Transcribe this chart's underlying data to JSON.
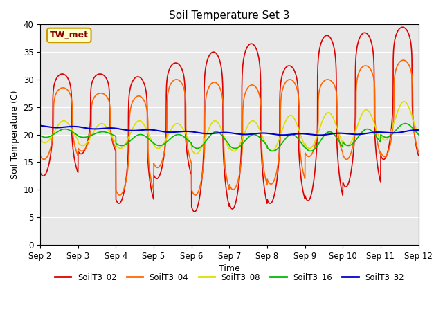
{
  "title": "Soil Temperature Set 3",
  "xlabel": "Time",
  "ylabel": "Soil Temperature (C)",
  "annotation_text": "TW_met",
  "annotation_color": "#880000",
  "annotation_bg": "#ffffcc",
  "annotation_border": "#cc9900",
  "ylim": [
    0,
    40
  ],
  "xlim_start": 0,
  "xlim_end": 10,
  "xtick_labels": [
    "Sep 2",
    "Sep 3",
    "Sep 4",
    "Sep 5",
    "Sep 6",
    "Sep 7",
    "Sep 8",
    "Sep 9",
    "Sep 10",
    "Sep 11",
    "Sep 12"
  ],
  "xtick_positions": [
    0,
    1,
    2,
    3,
    4,
    5,
    6,
    7,
    8,
    9,
    10
  ],
  "series_labels": [
    "SoilT3_02",
    "SoilT3_04",
    "SoilT3_08",
    "SoilT3_16",
    "SoilT3_32"
  ],
  "series_colors": [
    "#dd0000",
    "#ff6600",
    "#dddd00",
    "#00bb00",
    "#0000cc"
  ],
  "series_linewidths": [
    1.2,
    1.2,
    1.2,
    1.2,
    1.5
  ],
  "grid_color": "#ffffff",
  "bg_color": "#e8e8e8",
  "fig_color": "#ffffff",
  "yticks": [
    0,
    5,
    10,
    15,
    20,
    25,
    30,
    35,
    40
  ],
  "T02_peaks": [
    31.0,
    31.0,
    30.5,
    33.0,
    35.0,
    36.5,
    32.5,
    38.0,
    38.5,
    39.5
  ],
  "T02_troughs": [
    12.5,
    16.5,
    7.5,
    12.0,
    6.0,
    6.5,
    7.5,
    8.0,
    10.5,
    15.5
  ],
  "T04_peaks": [
    28.5,
    27.5,
    27.0,
    30.0,
    29.5,
    29.0,
    30.0,
    30.0,
    32.5,
    33.5
  ],
  "T04_troughs": [
    15.5,
    17.0,
    9.0,
    14.0,
    9.0,
    10.0,
    11.0,
    16.0,
    15.5,
    16.0
  ],
  "T08_peaks": [
    22.5,
    22.0,
    22.5,
    22.0,
    22.5,
    22.5,
    23.5,
    24.0,
    24.5,
    26.0
  ],
  "T08_troughs": [
    18.5,
    18.0,
    17.5,
    17.5,
    16.5,
    17.0,
    17.0,
    17.5,
    18.0,
    19.0
  ],
  "T16_peaks": [
    21.0,
    20.5,
    20.0,
    20.0,
    20.5,
    20.0,
    20.0,
    20.5,
    21.0,
    22.0
  ],
  "T16_troughs": [
    19.5,
    19.5,
    18.0,
    18.0,
    17.5,
    17.5,
    17.0,
    17.0,
    18.0,
    19.5
  ],
  "T32_base": [
    21.5,
    21.3,
    21.0,
    20.7,
    20.4,
    20.2,
    20.1,
    20.0,
    20.1,
    20.3,
    20.7
  ]
}
